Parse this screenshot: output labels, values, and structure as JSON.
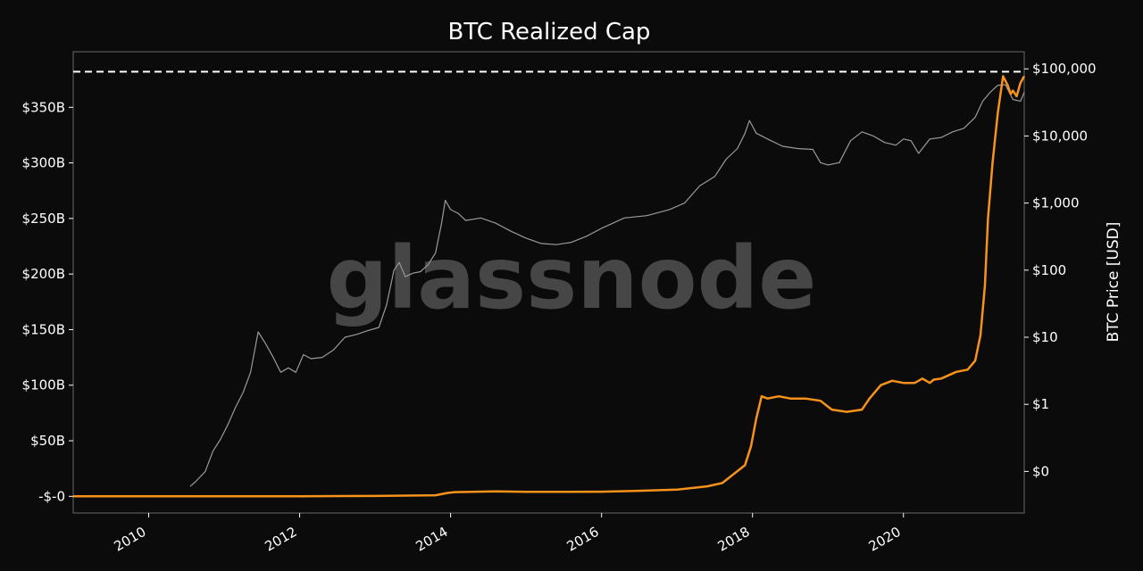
{
  "chart_data": {
    "type": "line",
    "title": "BTC Realized Cap",
    "watermark": "glassnode",
    "xlabel": "",
    "ylabel_left": "",
    "ylabel_right": "BTC Price [USD]",
    "x_ticks": [
      "2010",
      "2012",
      "2014",
      "2016",
      "2018",
      "2020"
    ],
    "x_range": [
      2009.0,
      2021.6
    ],
    "ylim_left": [
      -15,
      400
    ],
    "y_left_ticks": [
      {
        "value": 0,
        "label": "-$-0"
      },
      {
        "value": 50,
        "label": "$50B"
      },
      {
        "value": 100,
        "label": "$100B"
      },
      {
        "value": 150,
        "label": "$150B"
      },
      {
        "value": 200,
        "label": "$200B"
      },
      {
        "value": 250,
        "label": "$250B"
      },
      {
        "value": 300,
        "label": "$300B"
      },
      {
        "value": 350,
        "label": "$350B"
      }
    ],
    "y_right_scale": "log",
    "ylim_right": [
      0.024,
      180000
    ],
    "y_right_ticks": [
      {
        "value": 0.1,
        "label": "$0"
      },
      {
        "value": 1,
        "label": "$1"
      },
      {
        "value": 10,
        "label": "$10"
      },
      {
        "value": 100,
        "label": "$100"
      },
      {
        "value": 1000,
        "label": "$1,000"
      },
      {
        "value": 10000,
        "label": "$10,000"
      },
      {
        "value": 100000,
        "label": "$100,000"
      }
    ],
    "reference_line": {
      "axis": "left",
      "value": 382,
      "style": "dashed",
      "color": "#ffffff"
    },
    "grid": false,
    "series": [
      {
        "axis": "left",
        "color": "#f7931a",
        "x": [
          2009.0,
          2010.0,
          2011.0,
          2012.0,
          2013.0,
          2013.8,
          2013.95,
          2014.05,
          2014.6,
          2015.0,
          2016.0,
          2016.5,
          2017.0,
          2017.4,
          2017.6,
          2017.75,
          2017.9,
          2017.98,
          2018.05,
          2018.12,
          2018.2,
          2018.35,
          2018.5,
          2018.7,
          2018.9,
          2019.05,
          2019.25,
          2019.45,
          2019.55,
          2019.7,
          2019.85,
          2020.0,
          2020.15,
          2020.25,
          2020.35,
          2020.4,
          2020.5,
          2020.7,
          2020.85,
          2020.95,
          2021.02,
          2021.08,
          2021.12,
          2021.18,
          2021.25,
          2021.32,
          2021.38,
          2021.42,
          2021.45,
          2021.5,
          2021.55,
          2021.6
        ],
        "values": [
          0.0,
          0.0,
          0.05,
          0.1,
          0.3,
          1.0,
          3.0,
          3.8,
          4.5,
          4.0,
          4.2,
          5.0,
          6.0,
          9.0,
          12.0,
          20.0,
          28.0,
          45.0,
          70.0,
          90.0,
          88.0,
          90.0,
          88.0,
          88.0,
          86.0,
          78.0,
          76.0,
          78.0,
          88.0,
          100.0,
          104.0,
          102.0,
          102.0,
          106.0,
          102.0,
          105.0,
          106.0,
          112.0,
          114.0,
          122.0,
          145.0,
          190.0,
          250.0,
          300.0,
          345.0,
          378.0,
          370.0,
          362.0,
          365.0,
          360.0,
          372.0,
          378.0
        ]
      },
      {
        "axis": "right",
        "color": "#9a9a9a",
        "x": [
          2010.55,
          2010.62,
          2010.75,
          2010.85,
          2010.95,
          2011.05,
          2011.15,
          2011.25,
          2011.35,
          2011.45,
          2011.55,
          2011.65,
          2011.75,
          2011.85,
          2011.95,
          2012.05,
          2012.15,
          2012.3,
          2012.45,
          2012.6,
          2012.75,
          2012.9,
          2013.05,
          2013.15,
          2013.25,
          2013.32,
          2013.4,
          2013.5,
          2013.6,
          2013.7,
          2013.8,
          2013.88,
          2013.93,
          2014.0,
          2014.1,
          2014.2,
          2014.4,
          2014.6,
          2014.8,
          2015.0,
          2015.2,
          2015.4,
          2015.6,
          2015.8,
          2016.0,
          2016.3,
          2016.6,
          2016.9,
          2017.1,
          2017.3,
          2017.5,
          2017.65,
          2017.8,
          2017.9,
          2017.96,
          2018.05,
          2018.2,
          2018.4,
          2018.6,
          2018.8,
          2018.9,
          2019.0,
          2019.15,
          2019.3,
          2019.45,
          2019.6,
          2019.75,
          2019.9,
          2020.0,
          2020.1,
          2020.2,
          2020.35,
          2020.5,
          2020.65,
          2020.8,
          2020.95,
          2021.05,
          2021.15,
          2021.25,
          2021.35,
          2021.45,
          2021.55,
          2021.6
        ],
        "values": [
          0.06,
          0.07,
          0.1,
          0.2,
          0.3,
          0.5,
          0.9,
          1.5,
          3.0,
          12.0,
          8.0,
          5.0,
          3.0,
          3.5,
          3.0,
          5.5,
          4.8,
          5.0,
          6.5,
          10.0,
          11.0,
          12.5,
          14.0,
          30.0,
          100.0,
          130.0,
          80.0,
          90.0,
          95.0,
          120.0,
          180.0,
          500.0,
          1100.0,
          800.0,
          700.0,
          550.0,
          600.0,
          500.0,
          380.0,
          300.0,
          250.0,
          240.0,
          260.0,
          320.0,
          420.0,
          600.0,
          650.0,
          800.0,
          1000.0,
          1800.0,
          2500.0,
          4500.0,
          6500.0,
          11000.0,
          17000.0,
          11000.0,
          9000.0,
          7000.0,
          6500.0,
          6300.0,
          4000.0,
          3700.0,
          4000.0,
          8500.0,
          11500.0,
          10000.0,
          8000.0,
          7300.0,
          9000.0,
          8500.0,
          5500.0,
          9000.0,
          9500.0,
          11500.0,
          13000.0,
          19000.0,
          33000.0,
          45000.0,
          57000.0,
          58000.0,
          35000.0,
          33000.0,
          45000.0
        ]
      }
    ]
  }
}
